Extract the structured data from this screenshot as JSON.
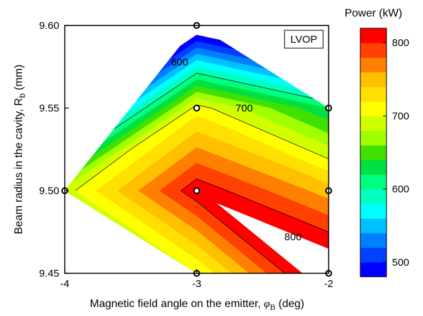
{
  "chart_data": {
    "type": "contour",
    "annotation": "LVOP",
    "xlabel_main": "Magnetic field angle on the emitter, ",
    "xlabel_symbol": "φ",
    "xlabel_sub": "B",
    "xlabel_unit": " (deg)",
    "ylabel_main": "Beam radius in the cavity, R",
    "ylabel_sub": "b",
    "ylabel_unit": " (mm)",
    "xlim": [
      -4,
      -2
    ],
    "ylim": [
      9.45,
      9.6
    ],
    "x_ticks": [
      {
        "value": -4,
        "label": "-4"
      },
      {
        "value": -3,
        "label": "-3"
      },
      {
        "value": -2,
        "label": "-2"
      }
    ],
    "y_ticks": [
      {
        "value": 9.45,
        "label": "9.45"
      },
      {
        "value": 9.5,
        "label": "9.50"
      },
      {
        "value": 9.55,
        "label": "9.55"
      },
      {
        "value": 9.6,
        "label": "9.60"
      }
    ],
    "points": [
      {
        "x": -4,
        "y": 9.5,
        "power": 690
      },
      {
        "x": -3,
        "y": 9.6,
        "power": 450
      },
      {
        "x": -3,
        "y": 9.55,
        "power": 710
      },
      {
        "x": -3,
        "y": 9.5,
        "power": 815
      },
      {
        "x": -3,
        "y": 9.45,
        "power": 700
      },
      {
        "x": -2,
        "y": 9.55,
        "power": 620
      },
      {
        "x": -2,
        "y": 9.5,
        "power": 750
      },
      {
        "x": -2,
        "y": 9.45,
        "power": 850
      }
    ],
    "triangles": [
      [
        0,
        1,
        2
      ],
      [
        0,
        2,
        3
      ],
      [
        0,
        3,
        4
      ],
      [
        1,
        5,
        2
      ],
      [
        2,
        5,
        6
      ],
      [
        2,
        6,
        3
      ],
      [
        3,
        6,
        7
      ],
      [
        3,
        7,
        4
      ]
    ],
    "levels": [
      480,
      500,
      520,
      540,
      560,
      580,
      600,
      620,
      640,
      660,
      680,
      700,
      720,
      740,
      760,
      780,
      800,
      820
    ],
    "level_colors": [
      "#0000ff",
      "#0040ff",
      "#0080ff",
      "#00c0ff",
      "#00ffff",
      "#00ffc0",
      "#00ff80",
      "#00e040",
      "#40e000",
      "#a0ff00",
      "#d0ff00",
      "#ffff00",
      "#ffe000",
      "#ffc000",
      "#ff8000",
      "#ff4000",
      "#ff0000"
    ],
    "contour_lines": [
      600,
      700,
      800
    ],
    "contour_labels": [
      {
        "text": "600",
        "x": -3.13,
        "y": 9.578
      },
      {
        "text": "700",
        "x": -2.64,
        "y": 9.55
      },
      {
        "text": "800",
        "x": -2.27,
        "y": 9.472
      }
    ],
    "colorbar": {
      "title": "Power (kW)",
      "min": 480,
      "max": 820,
      "ticks": [
        {
          "value": 500,
          "label": "500"
        },
        {
          "value": 600,
          "label": "600"
        },
        {
          "value": 700,
          "label": "700"
        },
        {
          "value": 800,
          "label": "800"
        }
      ]
    }
  }
}
